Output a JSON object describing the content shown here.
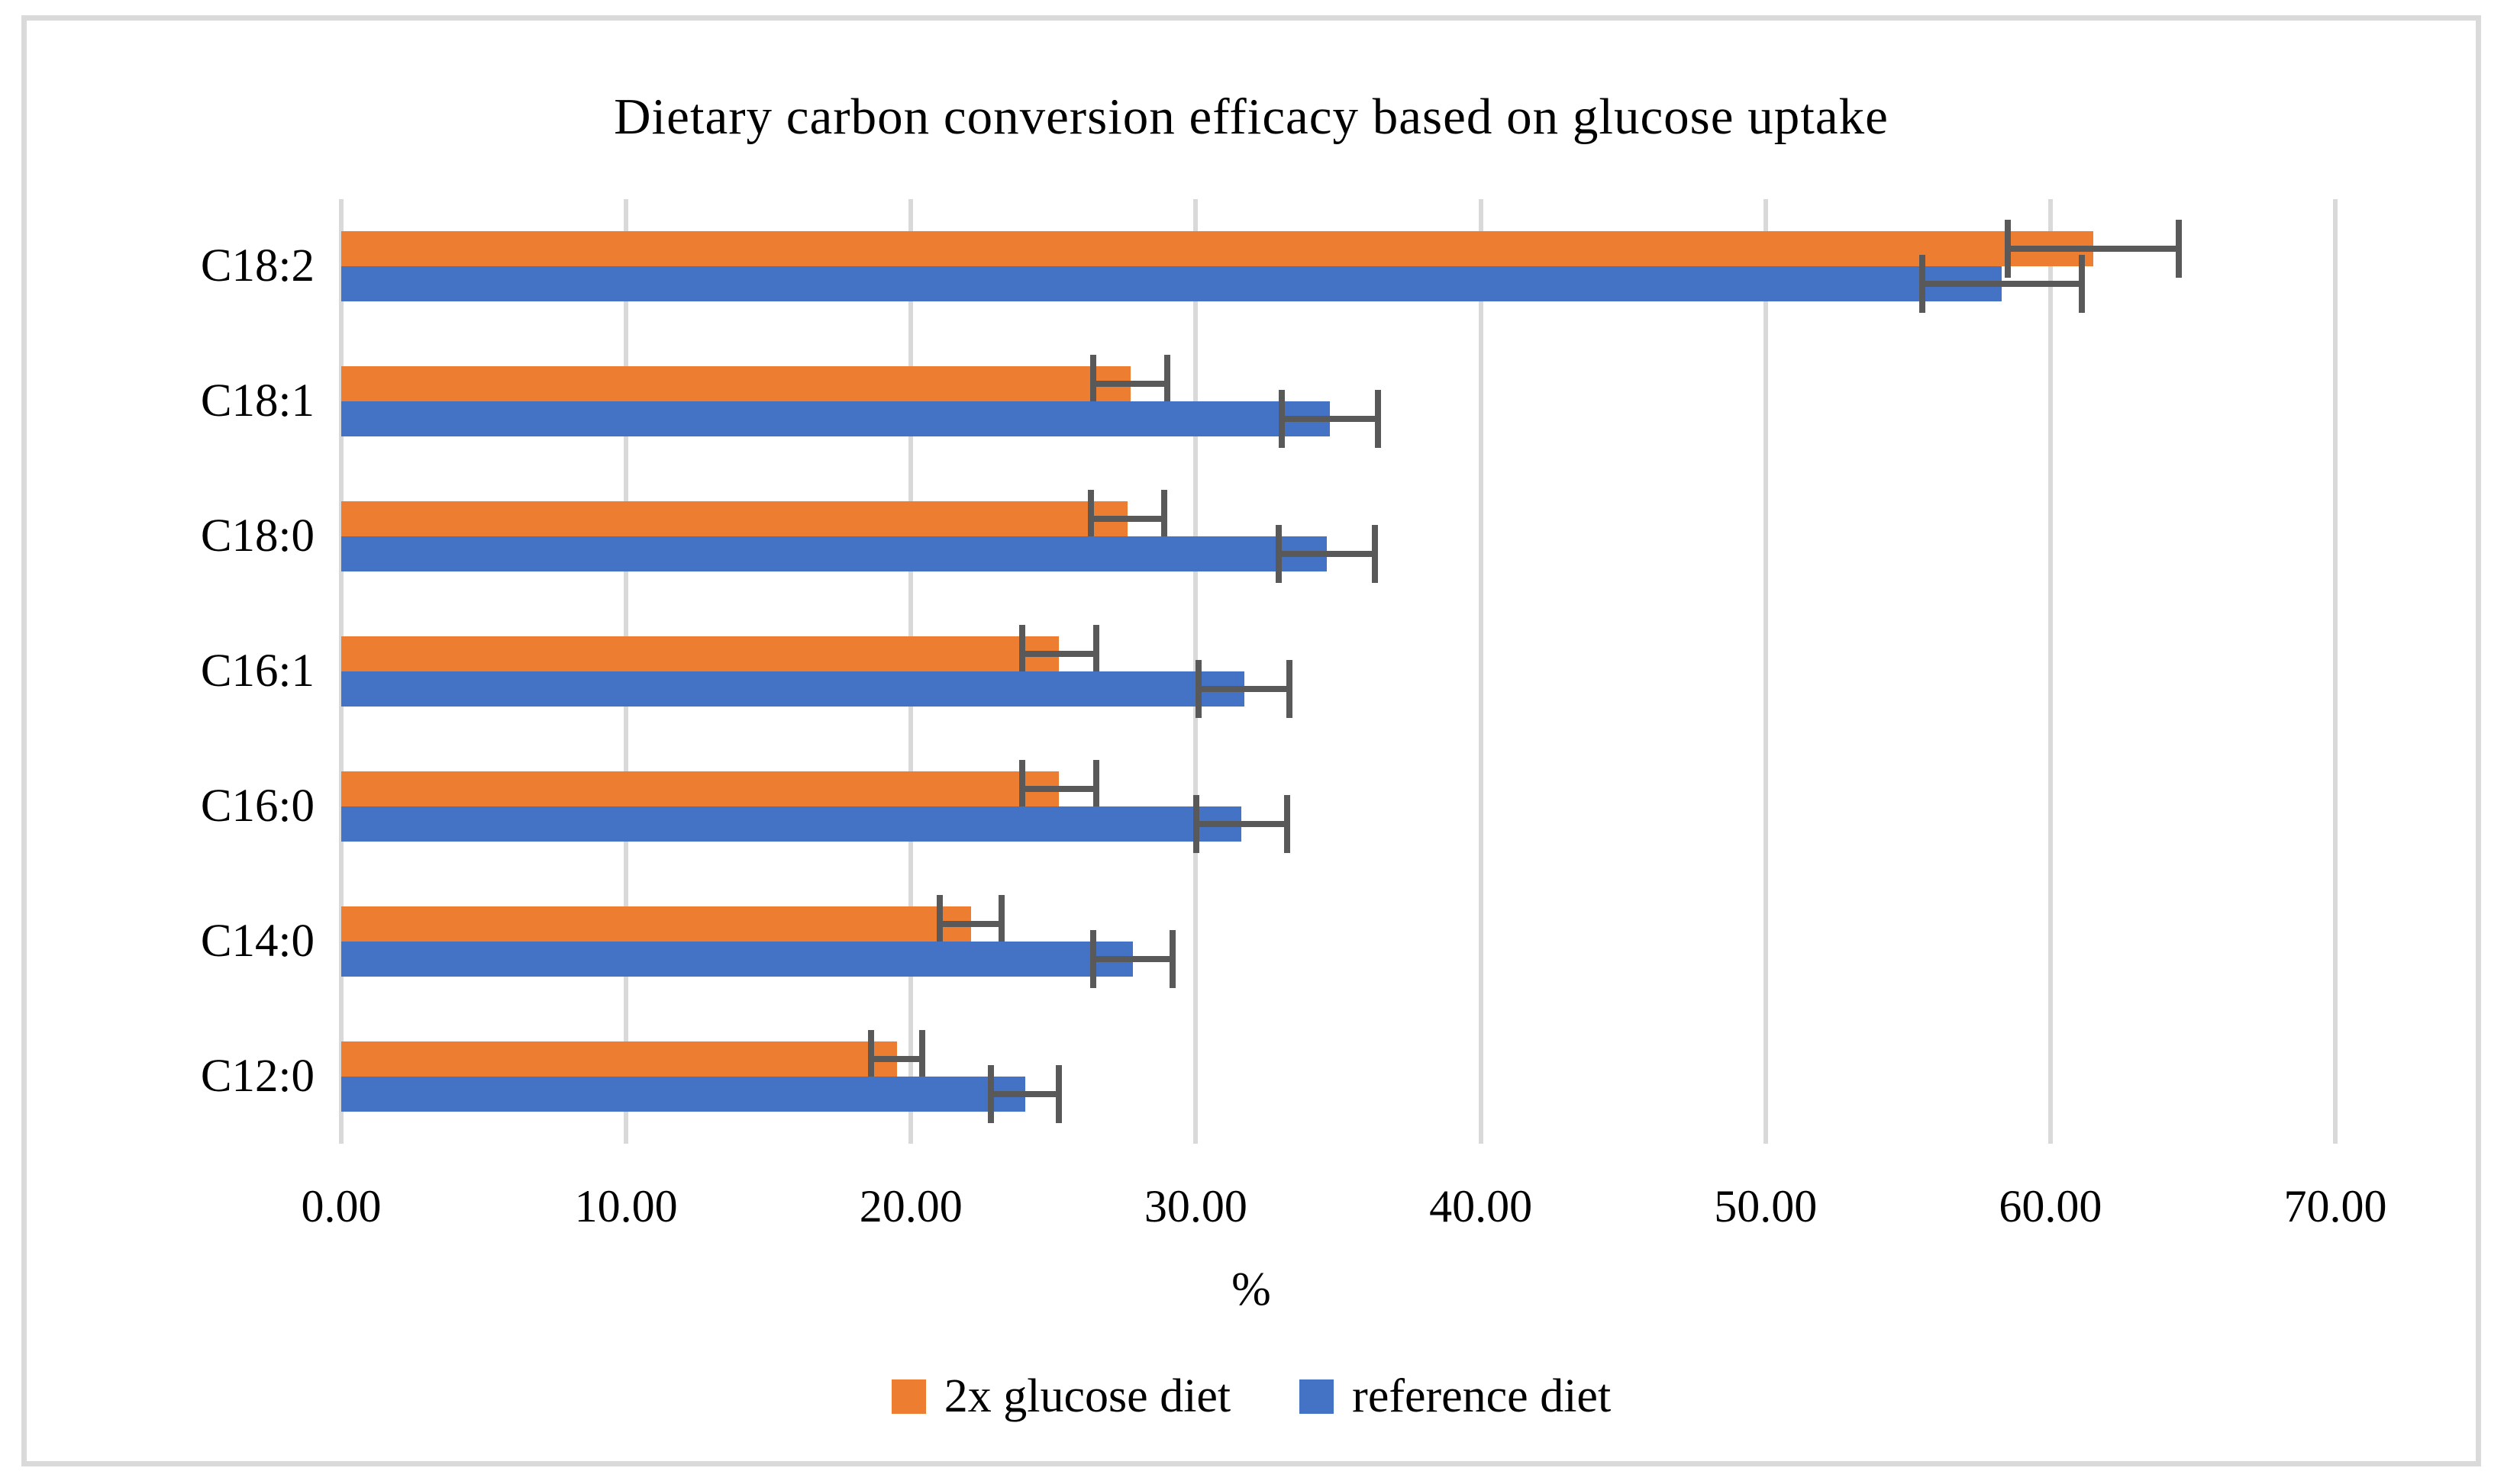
{
  "figure": {
    "title": "Dietary carbon conversion efficacy based on glucose uptake",
    "x_axis_title": "%"
  },
  "chart_data": {
    "type": "bar",
    "orientation": "horizontal",
    "title": "Dietary carbon conversion efficacy based on glucose uptake",
    "xlabel": "%",
    "ylabel": "",
    "categories": [
      "C18:2",
      "C18:1",
      "C18:0",
      "C16:1",
      "C16:0",
      "C14:0",
      "C12:0"
    ],
    "series": [
      {
        "name": "2x glucose diet",
        "color": "#ED7D31",
        "values": [
          61.5,
          27.7,
          27.6,
          25.2,
          25.2,
          22.1,
          19.5
        ],
        "errors": [
          3.1,
          1.4,
          1.4,
          1.4,
          1.4,
          1.2,
          1.0
        ]
      },
      {
        "name": "reference diet",
        "color": "#4472C4",
        "values": [
          58.3,
          34.7,
          34.6,
          31.7,
          31.6,
          27.8,
          24.0
        ],
        "errors": [
          2.9,
          1.8,
          1.8,
          1.7,
          1.7,
          1.5,
          1.3
        ]
      }
    ],
    "xlim": [
      0,
      70
    ],
    "xtick_labels": [
      "0.00",
      "10.00",
      "20.00",
      "30.00",
      "40.00",
      "50.00",
      "60.00",
      "70.00"
    ],
    "xtick_values": [
      0,
      10,
      20,
      30,
      40,
      50,
      60,
      70
    ],
    "grid": true,
    "legend_position": "bottom",
    "error_bar_color": "#595959",
    "gridline_color": "#D9D9D9",
    "text_color": "#000000"
  }
}
